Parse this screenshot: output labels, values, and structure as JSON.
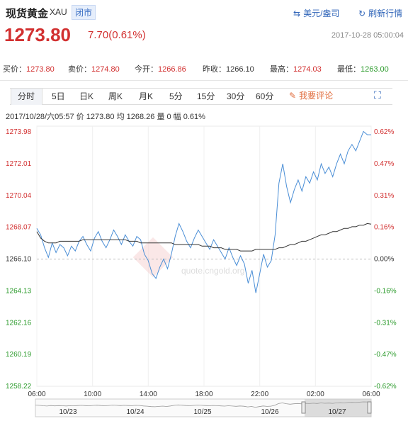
{
  "header": {
    "title": "现货黄金",
    "code": "XAU",
    "badge": "闭市",
    "switch_label": "美元/盎司",
    "refresh_label": "刷新行情"
  },
  "quote": {
    "price": "1273.80",
    "change": "7.70(0.61%)",
    "timestamp": "2017-10-28 05:00:04",
    "items": [
      {
        "label": "买价：",
        "value": "1273.80"
      },
      {
        "label": "卖价：",
        "value": "1274.80"
      },
      {
        "label": "今开：",
        "value": "1266.86"
      },
      {
        "label": "昨收：",
        "value": "1266.10"
      },
      {
        "label": "最高：",
        "value": "1274.03"
      },
      {
        "label": "最低：",
        "value": "1263.00"
      }
    ]
  },
  "tabs": [
    "分时",
    "5日",
    "日K",
    "周K",
    "月K",
    "5分",
    "15分",
    "30分",
    "60分"
  ],
  "comment_label": "我要评论",
  "info_line": "2017/10/28/六05:57  价 1273.80  均 1268.26  量 0  幅 0.61%",
  "watermark": "quote.cngold.org",
  "colors": {
    "up": "#d23030",
    "down": "#2a9a2a",
    "line": "#4a8ed6",
    "avg": "#333333"
  },
  "chart_data": {
    "type": "line",
    "y_left_ticks": [
      "1273.98",
      "1272.01",
      "1270.04",
      "1268.07",
      "1266.10",
      "1264.13",
      "1262.16",
      "1260.19",
      "1258.22"
    ],
    "y_right_ticks": [
      "0.62%",
      "0.47%",
      "0.31%",
      "0.16%",
      "0.00%",
      "-0.16%",
      "-0.31%",
      "-0.47%",
      "-0.62%"
    ],
    "x_ticks": [
      "06:00",
      "10:00",
      "14:00",
      "18:00",
      "22:00",
      "02:00",
      "06:00"
    ],
    "ylim": [
      1258.22,
      1273.98
    ],
    "prev_close": 1266.1,
    "series": [
      {
        "values": [
          1268.0,
          1267.6,
          1266.8,
          1266.2,
          1267.1,
          1266.5,
          1267.0,
          1266.8,
          1266.3,
          1266.9,
          1266.6,
          1267.2,
          1267.5,
          1267.0,
          1266.6,
          1267.4,
          1267.8,
          1267.2,
          1266.8,
          1267.3,
          1267.9,
          1267.5,
          1267.0,
          1267.6,
          1267.2,
          1266.9,
          1267.5,
          1267.3,
          1266.4,
          1266.0,
          1265.2,
          1264.9,
          1265.6,
          1266.1,
          1265.5,
          1266.4,
          1267.5,
          1268.3,
          1267.8,
          1267.2,
          1266.8,
          1267.4,
          1267.9,
          1267.5,
          1267.1,
          1266.7,
          1267.3,
          1266.9,
          1266.5,
          1266.1,
          1266.8,
          1266.2,
          1265.7,
          1266.3,
          1265.8,
          1264.6,
          1265.4,
          1264.0,
          1265.2,
          1266.4,
          1265.6,
          1266.0,
          1267.6,
          1270.8,
          1272.0,
          1270.6,
          1269.6,
          1270.4,
          1271.0,
          1270.3,
          1271.2,
          1270.8,
          1271.5,
          1271.0,
          1272.0,
          1271.4,
          1271.8,
          1271.2,
          1272.0,
          1272.6,
          1272.0,
          1272.8,
          1273.2,
          1272.8,
          1273.4,
          1274.0,
          1273.8,
          1273.8
        ]
      },
      {
        "values": [
          1267.8,
          1267.4,
          1267.2,
          1267.1,
          1267.1,
          1267.1,
          1267.2,
          1267.2,
          1267.2,
          1267.2,
          1267.2,
          1267.2,
          1267.3,
          1267.3,
          1267.3,
          1267.3,
          1267.3,
          1267.3,
          1267.3,
          1267.3,
          1267.3,
          1267.3,
          1267.3,
          1267.3,
          1267.2,
          1267.2,
          1267.2,
          1267.1,
          1267.1,
          1267.1,
          1267.1,
          1267.1,
          1267.1,
          1267.1,
          1267.1,
          1267.1,
          1267.0,
          1267.0,
          1267.0,
          1267.0,
          1267.0,
          1267.0,
          1267.0,
          1266.9,
          1266.9,
          1266.9,
          1266.8,
          1266.8,
          1266.8,
          1266.7,
          1266.7,
          1266.7,
          1266.7,
          1266.6,
          1266.6,
          1266.6,
          1266.6,
          1266.7,
          1266.7,
          1266.7,
          1266.7,
          1266.7,
          1266.7,
          1266.8,
          1266.8,
          1266.9,
          1267.0,
          1267.0,
          1267.1,
          1267.2,
          1267.2,
          1267.3,
          1267.4,
          1267.5,
          1267.6,
          1267.6,
          1267.7,
          1267.8,
          1267.8,
          1267.9,
          1268.0,
          1268.0,
          1268.1,
          1268.1,
          1268.2,
          1268.2,
          1268.3,
          1268.26
        ]
      }
    ],
    "navigator": {
      "labels": [
        "10/23",
        "10/24",
        "10/25",
        "10/26",
        "10/27"
      ]
    }
  }
}
